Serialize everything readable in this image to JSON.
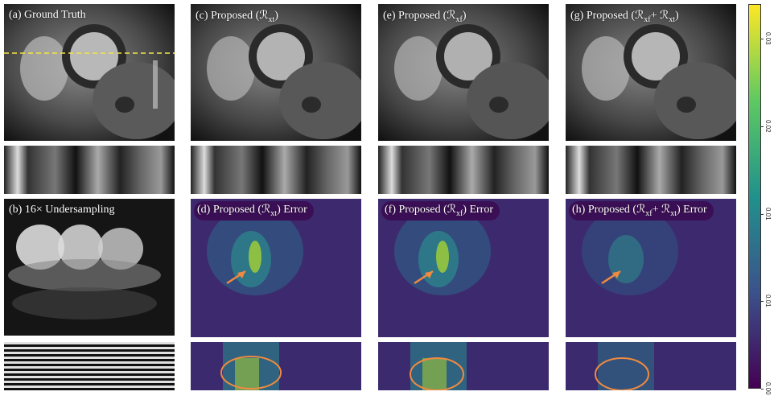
{
  "panels": {
    "a": "(a) Ground Truth",
    "b": "(b) 16× Undersampling",
    "c": "(c) Proposed (ℛ",
    "c_sub": "xt",
    "c_end": ")",
    "d": "(d) Proposed (ℛ",
    "d_sub": "xt",
    "d_end": ") Error",
    "e": "(e) Proposed (ℛ",
    "e_sub": "xf",
    "e_end": ")",
    "f": "(f) Proposed (ℛ",
    "f_sub": "xf",
    "f_end": ") Error",
    "g": "(g) Proposed (ℛ",
    "g_sub1": "xf",
    "g_mid": "+ ℛ",
    "g_sub2": "xt",
    "g_end": ")",
    "h": "(h) Proposed (ℛ",
    "h_sub1": "xf",
    "h_mid": "+ ℛ",
    "h_sub2": "xt",
    "h_end": ") Error"
  },
  "colorbar": {
    "ticks": [
      "0.00",
      "0.01",
      "0.01",
      "0.02",
      "0.03"
    ],
    "tick_values": [
      0.0,
      0.0075,
      0.015,
      0.0225,
      0.03
    ],
    "max": 0.033,
    "colormap": "viridis"
  },
  "colors": {
    "dashed_line": "#f5e642",
    "arrow": "#f08a40",
    "ellipse": "#f08a40"
  }
}
